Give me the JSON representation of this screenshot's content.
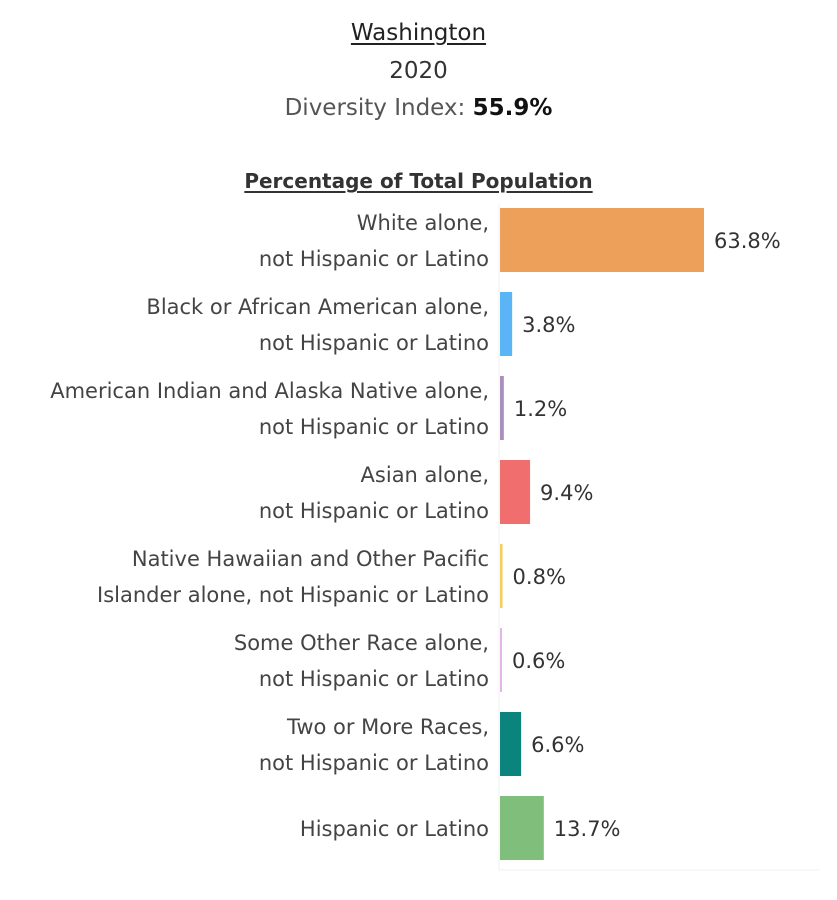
{
  "header": {
    "state": "Washington",
    "year": "2020",
    "diversity_label": "Diversity Index:",
    "diversity_value": "55.9%"
  },
  "chart_data": {
    "type": "bar",
    "orientation": "horizontal",
    "title": "Percentage of Total Population",
    "categories": [
      [
        "White alone,",
        "not Hispanic or Latino"
      ],
      [
        "Black or African American alone,",
        "not Hispanic or Latino"
      ],
      [
        "American Indian and Alaska Native alone,",
        "not Hispanic or Latino"
      ],
      [
        "Asian alone,",
        "not Hispanic or Latino"
      ],
      [
        "Native Hawaiian and Other Pacific",
        "Islander alone, not Hispanic or Latino"
      ],
      [
        "Some Other Race alone,",
        "not Hispanic or Latino"
      ],
      [
        "Two or More Races,",
        "not Hispanic or Latino"
      ],
      [
        "Hispanic or Latino"
      ]
    ],
    "values": [
      63.8,
      3.8,
      1.2,
      9.4,
      0.8,
      0.6,
      6.6,
      13.7
    ],
    "value_labels": [
      "63.8%",
      "3.8%",
      "1.2%",
      "9.4%",
      "0.8%",
      "0.6%",
      "6.6%",
      "13.7%"
    ],
    "colors": [
      "#eda05a",
      "#5ab4f5",
      "#a98fbe",
      "#f06e6e",
      "#f2d060",
      "#e4b5e8",
      "#0c847e",
      "#7fbf7b"
    ],
    "unit": "%"
  }
}
